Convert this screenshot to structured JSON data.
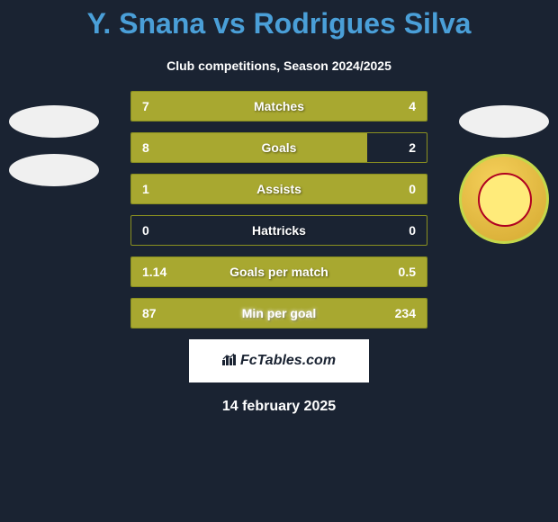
{
  "title": "Y. Snana vs Rodrigues Silva",
  "subtitle": "Club competitions, Season 2024/2025",
  "date": "14 february 2025",
  "footer_brand": "FcTables.com",
  "colors": {
    "background": "#1a2332",
    "title_color": "#4a9fd8",
    "bar_fill": "#a8a830",
    "bar_border": "#8a9020",
    "text": "#ffffff"
  },
  "stats": [
    {
      "label": "Matches",
      "left_val": "7",
      "right_val": "4",
      "left_pct": 100,
      "right_pct": 0,
      "glow": false
    },
    {
      "label": "Goals",
      "left_val": "8",
      "right_val": "2",
      "left_pct": 80,
      "right_pct": 0,
      "glow": false
    },
    {
      "label": "Assists",
      "left_val": "1",
      "right_val": "0",
      "left_pct": 100,
      "right_pct": 0,
      "glow": false
    },
    {
      "label": "Hattricks",
      "left_val": "0",
      "right_val": "0",
      "left_pct": 0,
      "right_pct": 0,
      "glow": false
    },
    {
      "label": "Goals per match",
      "left_val": "1.14",
      "right_val": "0.5",
      "left_pct": 100,
      "right_pct": 0,
      "glow": false
    },
    {
      "label": "Min per goal",
      "left_val": "87",
      "right_val": "234",
      "left_pct": 100,
      "right_pct": 0,
      "glow": true
    }
  ],
  "logos": {
    "left": {
      "type": "two-ellipses"
    },
    "right": {
      "type": "ellipse-and-badge"
    }
  }
}
